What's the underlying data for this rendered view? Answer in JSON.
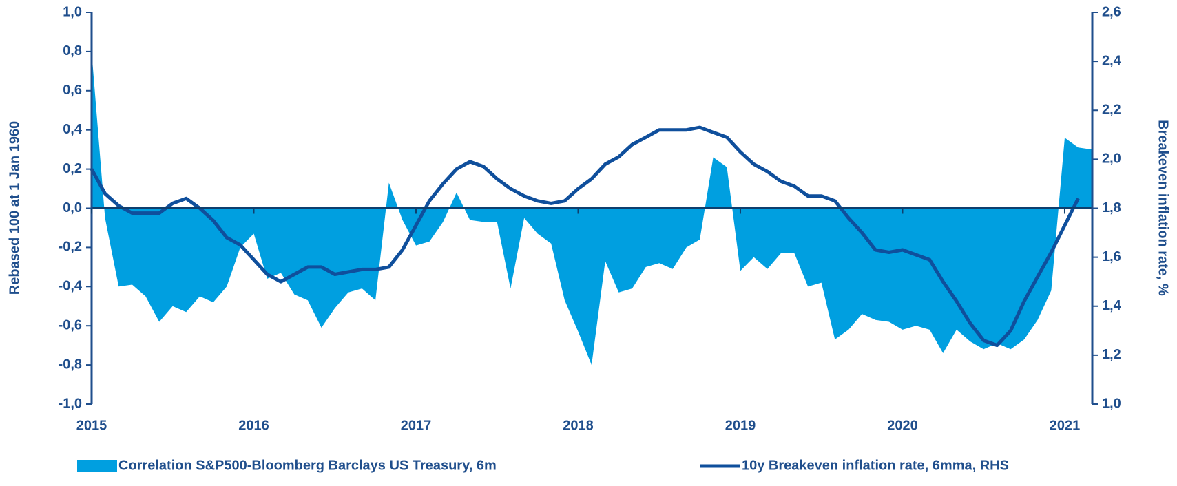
{
  "chart_data": {
    "type": "area-line",
    "y_label": "Rebased 100 at 1 Jan 1960",
    "y2_label": "Breakeven inflation rate, %",
    "x": [
      2015,
      2015.083,
      2015.167,
      2015.25,
      2015.333,
      2015.417,
      2015.5,
      2015.583,
      2015.667,
      2015.75,
      2015.833,
      2015.917,
      2016,
      2016.083,
      2016.167,
      2016.25,
      2016.333,
      2016.417,
      2016.5,
      2016.583,
      2016.667,
      2016.75,
      2016.833,
      2016.917,
      2017,
      2017.083,
      2017.167,
      2017.25,
      2017.333,
      2017.417,
      2017.5,
      2017.583,
      2017.667,
      2017.75,
      2017.833,
      2017.917,
      2018,
      2018.083,
      2018.167,
      2018.25,
      2018.333,
      2018.417,
      2018.5,
      2018.583,
      2018.667,
      2018.75,
      2018.833,
      2018.917,
      2019,
      2019.083,
      2019.167,
      2019.25,
      2019.333,
      2019.417,
      2019.5,
      2019.583,
      2019.667,
      2019.75,
      2019.833,
      2019.917,
      2020,
      2020.083,
      2020.167,
      2020.25,
      2020.333,
      2020.417,
      2020.5,
      2020.583,
      2020.667,
      2020.75,
      2020.833,
      2020.917,
      2021,
      2021.083,
      2021.167
    ],
    "series": [
      {
        "name": "Correlation S&P500-Bloomberg Barclays US Treasury, 6m",
        "color": "#009fe0",
        "kind": "area",
        "values": [
          0.8,
          -0.05,
          -0.4,
          -0.39,
          -0.45,
          -0.58,
          -0.5,
          -0.53,
          -0.45,
          -0.48,
          -0.4,
          -0.2,
          -0.13,
          -0.36,
          -0.33,
          -0.44,
          -0.47,
          -0.61,
          -0.51,
          -0.43,
          -0.41,
          -0.47,
          0.13,
          -0.06,
          -0.19,
          -0.17,
          -0.07,
          0.08,
          -0.06,
          -0.07,
          -0.07,
          -0.41,
          -0.05,
          -0.13,
          -0.18,
          -0.47,
          -0.63,
          -0.8,
          -0.27,
          -0.43,
          -0.41,
          -0.3,
          -0.28,
          -0.31,
          -0.2,
          -0.16,
          0.26,
          0.21,
          -0.32,
          -0.25,
          -0.31,
          -0.23,
          -0.23,
          -0.4,
          -0.38,
          -0.67,
          -0.62,
          -0.54,
          -0.57,
          -0.58,
          -0.62,
          -0.6,
          -0.62,
          -0.74,
          -0.62,
          -0.68,
          -0.72,
          -0.69,
          -0.72,
          -0.67,
          -0.57,
          -0.42,
          0.36,
          0.31,
          0.3
        ]
      },
      {
        "name": "10y Breakeven inflation rate,  6mma, RHS",
        "color": "#0f4f9c",
        "kind": "line",
        "axis": "y2",
        "values": [
          1.96,
          1.86,
          1.81,
          1.78,
          1.78,
          1.78,
          1.82,
          1.84,
          1.8,
          1.75,
          1.68,
          1.65,
          1.59,
          1.53,
          1.5,
          1.53,
          1.56,
          1.56,
          1.53,
          1.54,
          1.55,
          1.55,
          1.56,
          1.63,
          1.73,
          1.83,
          1.9,
          1.96,
          1.99,
          1.97,
          1.92,
          1.88,
          1.85,
          1.83,
          1.82,
          1.83,
          1.88,
          1.92,
          1.98,
          2.01,
          2.06,
          2.09,
          2.12,
          2.12,
          2.12,
          2.13,
          2.11,
          2.09,
          2.03,
          1.98,
          1.95,
          1.91,
          1.89,
          1.85,
          1.85,
          1.83,
          1.76,
          1.7,
          1.63,
          1.62,
          1.63,
          1.61,
          1.59,
          1.5,
          1.42,
          1.33,
          1.26,
          1.24,
          1.3,
          1.42,
          1.52,
          1.62,
          1.73,
          1.84,
          null
        ]
      }
    ],
    "xlim": [
      2015,
      2021.17
    ],
    "xticks": [
      2015,
      2016,
      2017,
      2018,
      2019,
      2020,
      2021
    ],
    "ylim": [
      -1,
      1
    ],
    "yticks": [
      {
        "value": -1,
        "label": "-1,0"
      },
      {
        "value": -0.8,
        "label": "-0,8"
      },
      {
        "value": -0.6,
        "label": "-0,6"
      },
      {
        "value": -0.4,
        "label": "-0,4"
      },
      {
        "value": -0.2,
        "label": "-0,2"
      },
      {
        "value": 0,
        "label": "0,0"
      },
      {
        "value": 0.2,
        "label": "0,2"
      },
      {
        "value": 0.4,
        "label": "0,4"
      },
      {
        "value": 0.6,
        "label": "0,6"
      },
      {
        "value": 0.8,
        "label": "0,8"
      },
      {
        "value": 1,
        "label": "1,0"
      }
    ],
    "y2lim": [
      1,
      2.6
    ],
    "y2ticks": [
      {
        "value": 1,
        "label": "1,0"
      },
      {
        "value": 1.2,
        "label": "1,2"
      },
      {
        "value": 1.4,
        "label": "1,4"
      },
      {
        "value": 1.6,
        "label": "1,6"
      },
      {
        "value": 1.8,
        "label": "1,8"
      },
      {
        "value": 2,
        "label": "2,0"
      },
      {
        "value": 2.2,
        "label": "2,2"
      },
      {
        "value": 2.4,
        "label": "2,4"
      },
      {
        "value": 2.6,
        "label": "2,6"
      }
    ],
    "legend": "bottom"
  }
}
